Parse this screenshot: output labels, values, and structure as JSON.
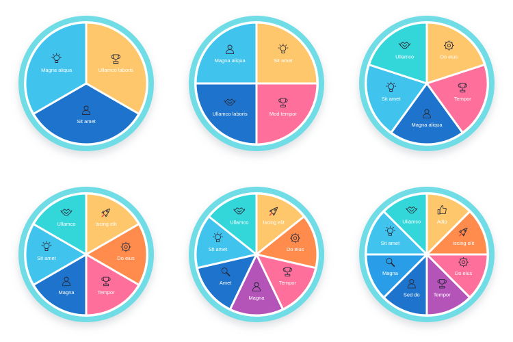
{
  "colors": {
    "ring": "#6fdde6",
    "orange": "#ffc76b",
    "blue_light": "#40c4ee",
    "blue_mid": "#2a9de8",
    "blue_dark": "#1e74cc",
    "teal": "#33d6d9",
    "pink": "#ff6f9c",
    "coral": "#ff8c4d",
    "purple": "#b453b8"
  },
  "charts": [
    {
      "segments": [
        {
          "label": "Ullamco laboris",
          "icon": "trophy-icon",
          "color": "orange"
        },
        {
          "label": "Sit amet",
          "icon": "person-icon",
          "color": "blue_dark"
        },
        {
          "label": "Magna aliqua",
          "icon": "lightbulb-icon",
          "color": "blue_light"
        }
      ]
    },
    {
      "segments": [
        {
          "label": "Sit amet",
          "icon": "lightbulb-icon",
          "color": "orange"
        },
        {
          "label": "Mod tempor",
          "icon": "trophy-icon",
          "color": "pink"
        },
        {
          "label": "Ullamco laboris",
          "icon": "handshake-icon",
          "color": "blue_dark"
        },
        {
          "label": "Magna aliqua",
          "icon": "person-icon",
          "color": "blue_light"
        }
      ]
    },
    {
      "segments": [
        {
          "label": "Do eius",
          "icon": "gear-icon",
          "color": "orange"
        },
        {
          "label": "Tempor",
          "icon": "trophy-icon",
          "color": "pink"
        },
        {
          "label": "Magna aliqua",
          "icon": "person-icon",
          "color": "blue_dark"
        },
        {
          "label": "Sit amet",
          "icon": "lightbulb-icon",
          "color": "blue_light"
        },
        {
          "label": "Ullamco",
          "icon": "handshake-icon",
          "color": "teal"
        }
      ]
    },
    {
      "segments": [
        {
          "label": "Iscing elit",
          "icon": "rocket-icon",
          "color": "orange"
        },
        {
          "label": "Do eius",
          "icon": "gear-icon",
          "color": "coral"
        },
        {
          "label": "Tempor",
          "icon": "trophy-icon",
          "color": "pink"
        },
        {
          "label": "Magna",
          "icon": "person-icon",
          "color": "blue_dark"
        },
        {
          "label": "Sit amet",
          "icon": "lightbulb-icon",
          "color": "blue_light"
        },
        {
          "label": "Ullamco",
          "icon": "handshake-icon",
          "color": "teal"
        }
      ]
    },
    {
      "segments": [
        {
          "label": "Iscing elit",
          "icon": "rocket-icon",
          "color": "orange"
        },
        {
          "label": "Do eius",
          "icon": "gear-icon",
          "color": "coral"
        },
        {
          "label": "Tempor",
          "icon": "trophy-icon",
          "color": "pink"
        },
        {
          "label": "Magna",
          "icon": "person-icon",
          "color": "purple"
        },
        {
          "label": "Amet",
          "icon": "magnifier-icon",
          "color": "blue_dark"
        },
        {
          "label": "Sit amet",
          "icon": "lightbulb-icon",
          "color": "blue_light"
        },
        {
          "label": "Ullamco",
          "icon": "handshake-icon",
          "color": "teal"
        }
      ]
    },
    {
      "segments": [
        {
          "label": "Adip",
          "icon": "thumbs-up-icon",
          "color": "orange"
        },
        {
          "label": "Iscing elit",
          "icon": "rocket-icon",
          "color": "coral"
        },
        {
          "label": "Do eius",
          "icon": "gear-icon",
          "color": "pink"
        },
        {
          "label": "Tempor",
          "icon": "trophy-icon",
          "color": "purple"
        },
        {
          "label": "Sed do",
          "icon": "person-icon",
          "color": "blue_dark"
        },
        {
          "label": "Magna",
          "icon": "magnifier-icon",
          "color": "blue_mid"
        },
        {
          "label": "Sit amet",
          "icon": "lightbulb-icon",
          "color": "blue_light"
        },
        {
          "label": "Ullamco",
          "icon": "handshake-icon",
          "color": "teal"
        }
      ]
    }
  ]
}
